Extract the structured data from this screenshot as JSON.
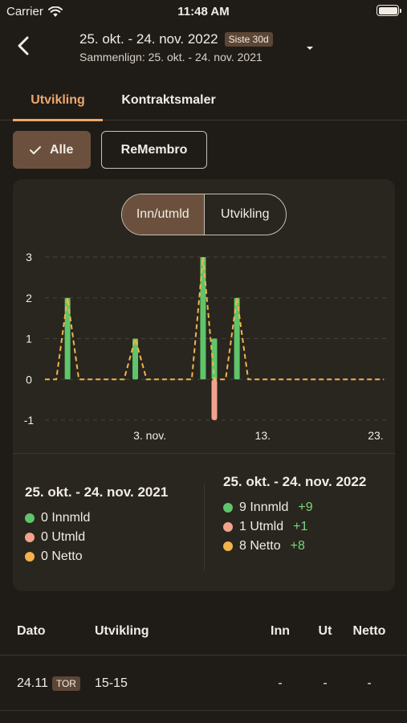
{
  "status": {
    "carrier": "Carrier",
    "time": "11:48 AM"
  },
  "header": {
    "range": "25. okt. - 24. nov. 2022",
    "range_badge": "Siste 30d",
    "compare": "Sammenlign: 25. okt. - 24. nov. 2021"
  },
  "tabs": [
    "Utvikling",
    "Kontraktsmaler"
  ],
  "filters": {
    "all": "Alle",
    "other": "ReMembro"
  },
  "segment": [
    "Inn/utmld",
    "Utvikling"
  ],
  "colors": {
    "innmld": "#5fc56a",
    "utmld": "#f2a38e",
    "netto": "#f2b44a",
    "accent": "#f0a86a"
  },
  "chart_data": {
    "type": "bar",
    "x_labels": [
      "3. nov.",
      "13.",
      "23."
    ],
    "ylim": [
      -1,
      3
    ],
    "y_ticks": [
      3,
      2,
      1,
      0,
      -1
    ],
    "grid": true,
    "days": 31,
    "series": [
      {
        "key": "innmld",
        "values": [
          0,
          0,
          2,
          0,
          0,
          0,
          0,
          0,
          1,
          0,
          0,
          0,
          0,
          0,
          3,
          1,
          0,
          2,
          0,
          0,
          0,
          0,
          0,
          0,
          0,
          0,
          0,
          0,
          0,
          0,
          0
        ]
      },
      {
        "key": "utmld",
        "values": [
          0,
          0,
          0,
          0,
          0,
          0,
          0,
          0,
          0,
          0,
          0,
          0,
          0,
          0,
          0,
          -1,
          0,
          0,
          0,
          0,
          0,
          0,
          0,
          0,
          0,
          0,
          0,
          0,
          0,
          0,
          0
        ]
      },
      {
        "key": "netto",
        "values": [
          0,
          0,
          2,
          0,
          0,
          0,
          0,
          0,
          1,
          0,
          0,
          0,
          0,
          0,
          3,
          0,
          0,
          2,
          0,
          0,
          0,
          0,
          0,
          0,
          0,
          0,
          0,
          0,
          0,
          0,
          0
        ]
      }
    ]
  },
  "summary_prev": {
    "title": "25. okt. - 24. nov. 2021",
    "innmld": "0 Innmld",
    "utmld": "0 Utmld",
    "netto": "0 Netto"
  },
  "summary_curr": {
    "title": "25. okt. - 24. nov. 2022",
    "innmld": "9 Innmld",
    "innmld_delta": "+9",
    "utmld": "1 Utmld",
    "utmld_delta": "+1",
    "netto": "8 Netto",
    "netto_delta": "+8"
  },
  "table": {
    "headers": [
      "Dato",
      "Utvikling",
      "Inn",
      "Ut",
      "Netto"
    ],
    "rows": [
      {
        "date": "24.11",
        "day": "TOR",
        "utvikling": "15-15",
        "inn": "-",
        "ut": "-",
        "netto": "-"
      }
    ]
  }
}
